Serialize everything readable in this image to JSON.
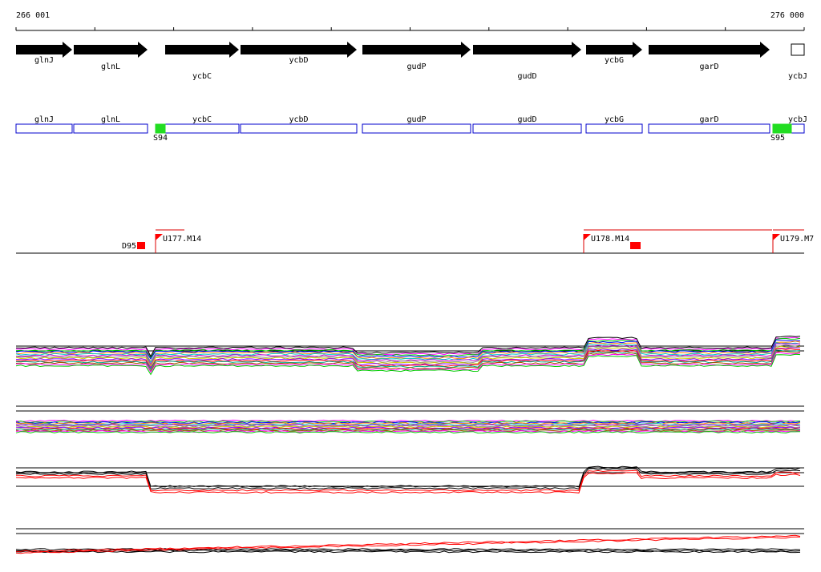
{
  "ruler": {
    "start": "266 001",
    "end": "276 000"
  },
  "genes": [
    "glnJ",
    "glnL",
    "ycbC",
    "ycbD",
    "gudP",
    "gudD",
    "ycbG",
    "garD",
    "ycbJ"
  ],
  "boxes": [
    "glnJ",
    "glnL",
    "ycbC",
    "ycbD",
    "gudP",
    "gudD",
    "ycbG",
    "garD",
    "ycbJ"
  ],
  "sites": [
    "S94",
    "S95"
  ],
  "features": [
    "D95",
    "U177.M14",
    "U178.M14",
    "U179.M7"
  ]
}
